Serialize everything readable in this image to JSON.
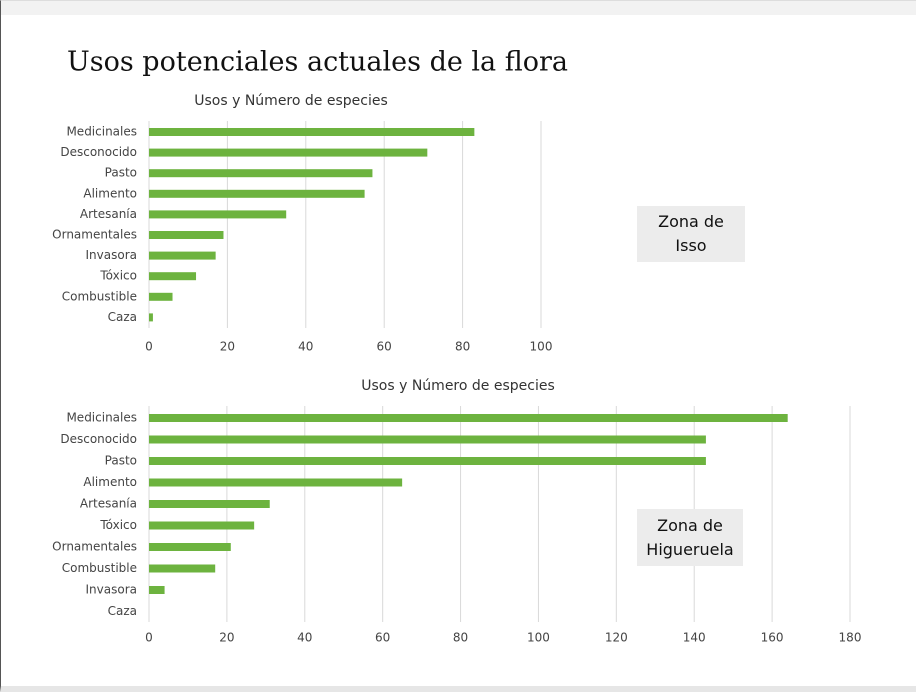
{
  "title": "Usos potenciales actuales de la flora",
  "chart_data": [
    {
      "type": "bar",
      "orientation": "horizontal",
      "title": "Usos y Número de especies",
      "categories": [
        "Medicinales",
        "Desconocido",
        "Pasto",
        "Alimento",
        "Artesanía",
        "Ornamentales",
        "Invasora",
        "Tóxico",
        "Combustible",
        "Caza"
      ],
      "values": [
        83,
        71,
        57,
        55,
        35,
        19,
        17,
        12,
        6,
        1
      ],
      "color": "#6db33f",
      "xlim": [
        0,
        100
      ],
      "xticks": [
        0,
        20,
        40,
        60,
        80,
        100
      ],
      "grid": true,
      "annotation": "Zona de Isso"
    },
    {
      "type": "bar",
      "orientation": "horizontal",
      "title": "Usos y Número de especies",
      "categories": [
        "Medicinales",
        "Desconocido",
        "Pasto",
        "Alimento",
        "Artesanía",
        "Tóxico",
        "Ornamentales",
        "Combustible",
        "Invasora",
        "Caza"
      ],
      "values": [
        164,
        143,
        143,
        65,
        31,
        27,
        21,
        17,
        4,
        0
      ],
      "color": "#6db33f",
      "xlim": [
        0,
        180
      ],
      "xticks": [
        0,
        20,
        40,
        60,
        80,
        100,
        120,
        140,
        160,
        180
      ],
      "grid": true,
      "annotation": "Zona de Higueruela"
    }
  ]
}
